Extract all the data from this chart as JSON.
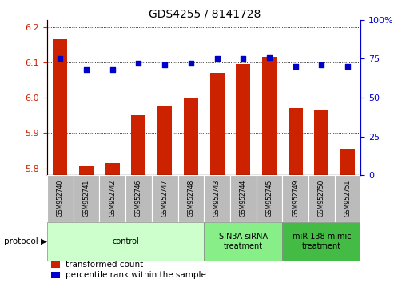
{
  "title": "GDS4255 / 8141728",
  "samples": [
    "GSM952740",
    "GSM952741",
    "GSM952742",
    "GSM952746",
    "GSM952747",
    "GSM952748",
    "GSM952743",
    "GSM952744",
    "GSM952745",
    "GSM952749",
    "GSM952750",
    "GSM952751"
  ],
  "bar_values": [
    6.165,
    5.805,
    5.815,
    5.95,
    5.975,
    6.0,
    6.07,
    6.095,
    6.115,
    5.97,
    5.965,
    5.855
  ],
  "percentile_values": [
    75,
    68,
    68,
    72,
    71,
    72,
    75,
    75,
    76,
    70,
    71,
    70
  ],
  "ylim_left": [
    5.78,
    6.22
  ],
  "ylim_right": [
    0,
    100
  ],
  "yticks_left": [
    5.8,
    5.9,
    6.0,
    6.1,
    6.2
  ],
  "yticks_right": [
    0,
    25,
    50,
    75,
    100
  ],
  "bar_color": "#cc2200",
  "dot_color": "#0000cc",
  "grid_color": "#000000",
  "protocol_groups": [
    {
      "label": "control",
      "start": 0,
      "end": 5,
      "color": "#ccffcc"
    },
    {
      "label": "SIN3A siRNA\ntreatment",
      "start": 6,
      "end": 8,
      "color": "#88ee88"
    },
    {
      "label": "miR-138 mimic\ntreatment",
      "start": 9,
      "end": 11,
      "color": "#44bb44"
    }
  ],
  "legend_items": [
    {
      "label": "transformed count",
      "color": "#cc2200"
    },
    {
      "label": "percentile rank within the sample",
      "color": "#0000cc"
    }
  ],
  "sample_bg_color": "#bbbbbb",
  "sample_text_fontsize": 5.5,
  "protocol_text_fontsize": 7.0,
  "legend_fontsize": 7.5,
  "title_fontsize": 10
}
